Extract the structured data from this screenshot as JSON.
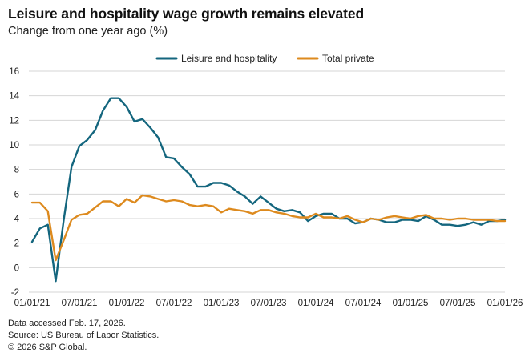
{
  "chart_data": {
    "type": "line",
    "title": "Leisure and hospitality wage growth remains elevated",
    "subtitle": "Change from one year ago (%)",
    "xlabel": "",
    "ylabel": "",
    "ylim": [
      -2,
      16
    ],
    "yticks": [
      -2,
      0,
      2,
      4,
      6,
      8,
      10,
      12,
      14,
      16
    ],
    "xlim_months": [
      0,
      60
    ],
    "xticks": [
      {
        "label": "01/01/21",
        "month": 0
      },
      {
        "label": "07/01/21",
        "month": 6
      },
      {
        "label": "01/01/22",
        "month": 12
      },
      {
        "label": "07/01/22",
        "month": 18
      },
      {
        "label": "01/01/23",
        "month": 24
      },
      {
        "label": "07/01/23",
        "month": 30
      },
      {
        "label": "01/01/24",
        "month": 36
      },
      {
        "label": "07/01/24",
        "month": 42
      },
      {
        "label": "01/01/25",
        "month": 48
      },
      {
        "label": "07/01/25",
        "month": 54
      },
      {
        "label": "01/01/26",
        "month": 60
      }
    ],
    "grid": true,
    "legend_position": "top-center",
    "series": [
      {
        "name": "Leisure and hospitality",
        "color": "#14667e",
        "values": [
          2.1,
          3.2,
          3.5,
          -1.1,
          3.8,
          8.2,
          9.9,
          10.4,
          11.2,
          12.8,
          13.8,
          13.8,
          13.1,
          11.9,
          12.1,
          11.4,
          10.6,
          9.0,
          8.9,
          8.2,
          7.6,
          6.6,
          6.6,
          6.9,
          6.9,
          6.7,
          6.2,
          5.8,
          5.2,
          5.8,
          5.3,
          4.8,
          4.6,
          4.7,
          4.5,
          3.8,
          4.2,
          4.4,
          4.4,
          4.0,
          4.0,
          3.6,
          3.7,
          4.0,
          3.9,
          3.7,
          3.7,
          3.9,
          3.9,
          3.8,
          4.2,
          3.9,
          3.5,
          3.5,
          3.4,
          3.5,
          3.7,
          3.5,
          3.8,
          3.8,
          3.9
        ]
      },
      {
        "name": "Total private",
        "color": "#dd8a1e",
        "values": [
          5.3,
          5.3,
          4.6,
          0.6,
          2.2,
          3.9,
          4.3,
          4.4,
          4.9,
          5.4,
          5.4,
          5.0,
          5.6,
          5.3,
          5.9,
          5.8,
          5.6,
          5.4,
          5.5,
          5.4,
          5.1,
          5.0,
          5.1,
          5.0,
          4.5,
          4.8,
          4.7,
          4.6,
          4.4,
          4.7,
          4.7,
          4.5,
          4.4,
          4.2,
          4.1,
          4.1,
          4.4,
          4.1,
          4.1,
          4.0,
          4.2,
          3.9,
          3.7,
          4.0,
          3.9,
          4.1,
          4.2,
          4.1,
          4.0,
          4.2,
          4.3,
          4.0,
          4.0,
          3.9,
          4.0,
          4.0,
          3.9,
          3.9,
          3.9,
          3.8,
          3.8
        ]
      }
    ]
  },
  "footer": {
    "line1": "Data accessed Feb. 17, 2026.",
    "line2": "Source: US Bureau of Labor Statistics.",
    "line3": "© 2026 S&P Global."
  }
}
